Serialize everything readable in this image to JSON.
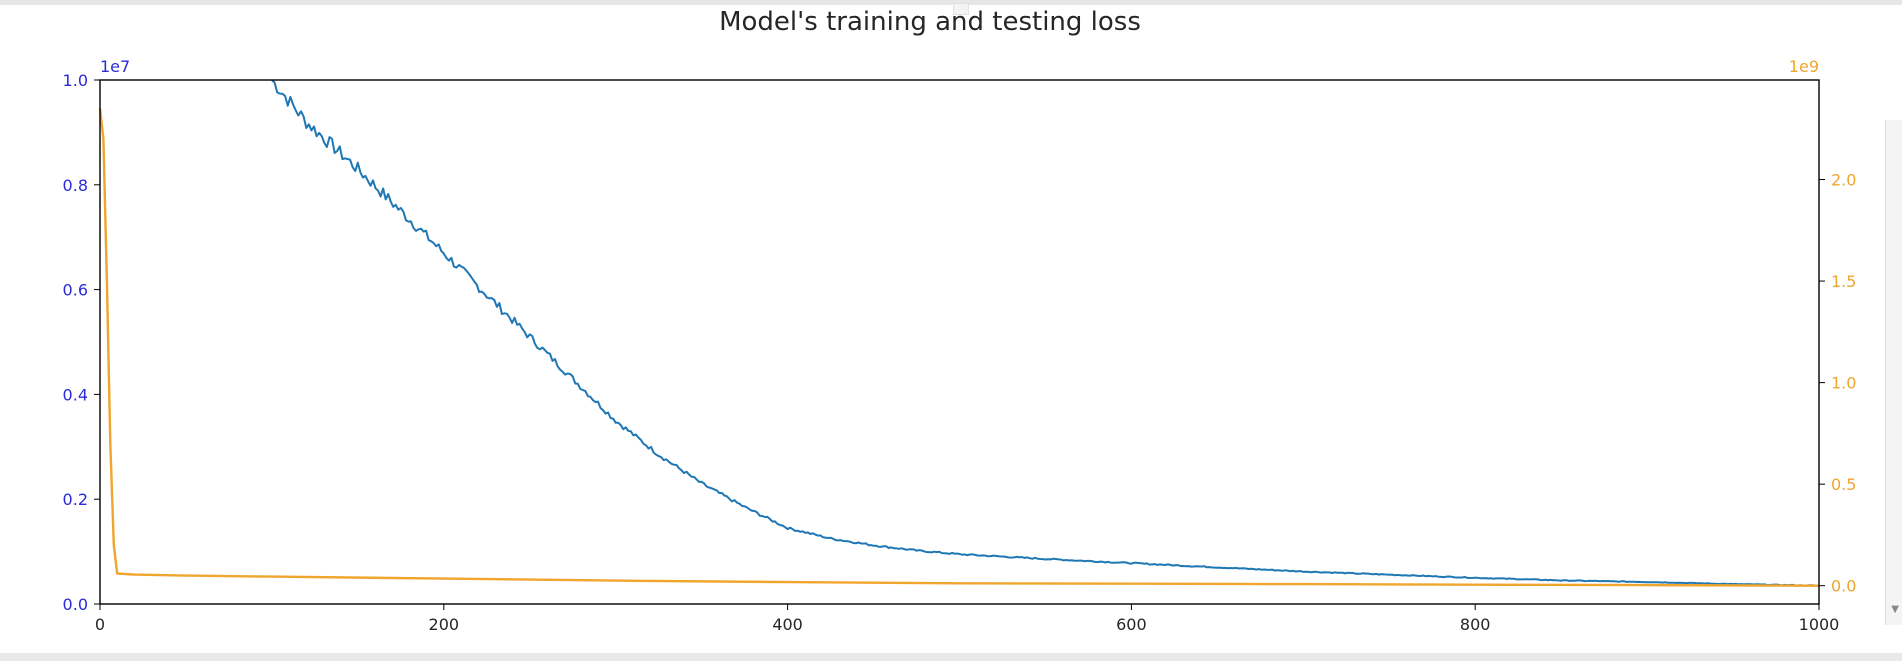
{
  "chart_data": {
    "type": "line",
    "title": "Model's training and testing loss",
    "xlabel": "",
    "xlim": [
      0,
      1000
    ],
    "xticks": [
      "0",
      "200",
      "400",
      "600",
      "800",
      "1000"
    ],
    "left_axis": {
      "ylabel": "",
      "ylim": [
        0,
        10000000
      ],
      "offset_text": "1e7",
      "ticks": [
        "0.0",
        "0.2",
        "0.4",
        "0.6",
        "0.8",
        "1.0"
      ],
      "color": "#2a2ad8"
    },
    "right_axis": {
      "ylabel": "",
      "ylim": [
        -0.09,
        2.49
      ],
      "offset_text": "1e9",
      "ticks": [
        "0.0",
        "0.5",
        "1.0",
        "1.5",
        "2.0"
      ],
      "color": "#f0a52c"
    },
    "grid": false,
    "legend": "none",
    "series": [
      {
        "axis": "left",
        "color": "#1f77b4",
        "x": [
          100,
          120,
          150,
          175,
          200,
          225,
          250,
          275,
          300,
          325,
          350,
          375,
          400,
          425,
          450,
          475,
          500,
          550,
          600,
          650,
          700,
          750,
          800,
          850,
          900,
          950,
          1000
        ],
        "y": [
          10000000,
          9200000,
          8300000,
          7500000,
          6700000,
          5900000,
          5100000,
          4300000,
          3500000,
          2850000,
          2300000,
          1850000,
          1450000,
          1250000,
          1120000,
          1020000,
          950000,
          860000,
          780000,
          700000,
          620000,
          560000,
          500000,
          450000,
          420000,
          380000,
          350000
        ]
      },
      {
        "axis": "right",
        "values_unit": "1e9",
        "color": "#f0a52c",
        "x": [
          0,
          2,
          4,
          6,
          8,
          10,
          20,
          50,
          100,
          200,
          300,
          400,
          500,
          600,
          700,
          800,
          900,
          1000
        ],
        "y": [
          2.35,
          2.2,
          1.5,
          0.7,
          0.2,
          0.06,
          0.055,
          0.05,
          0.045,
          0.035,
          0.025,
          0.018,
          0.012,
          0.01,
          0.008,
          0.005,
          0.003,
          0.0
        ]
      }
    ]
  }
}
